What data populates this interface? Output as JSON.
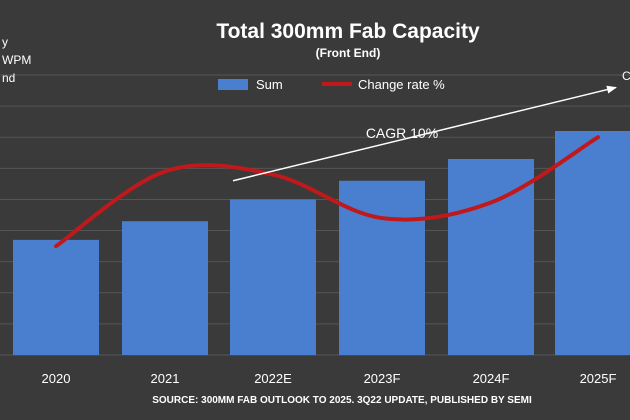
{
  "chart_data": {
    "type": "bar",
    "title": "Total 300mm Fab Capacity",
    "subtitle": "(Front End)",
    "left_axis_fragments": [
      "y",
      "WPM",
      "nd"
    ],
    "right_axis_fragment": "C",
    "categories": [
      "2020",
      "2021",
      "2022E",
      "2023F",
      "2024F",
      "2025F"
    ],
    "ylim": [
      0,
      9
    ],
    "gridlines": true,
    "legend_position": "top-center",
    "series": [
      {
        "name": "Sum",
        "type": "bar",
        "color": "#4a7fcf",
        "values": [
          3.7,
          4.3,
          5.0,
          5.6,
          6.3,
          7.2
        ]
      },
      {
        "name": "Change rate %",
        "type": "line",
        "color": "#c0191c",
        "values": [
          3.5,
          5.9,
          5.8,
          4.4,
          4.9,
          7.0
        ]
      }
    ],
    "annotation": {
      "text": "CAGR 10%",
      "color": "#ffffff",
      "from_category": "2022E",
      "to_category": "2025F",
      "from_value": 5.6,
      "to_value": 8.6
    },
    "source": "SOURCE: 300MM FAB OUTLOOK TO 2025. 3Q22 UPDATE, PUBLISHED BY SEMI"
  }
}
